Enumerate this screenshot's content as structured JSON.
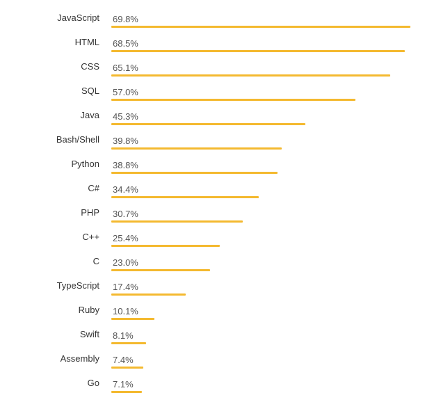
{
  "chart_data": {
    "type": "bar",
    "orientation": "horizontal",
    "categories": [
      "JavaScript",
      "HTML",
      "CSS",
      "SQL",
      "Java",
      "Bash/Shell",
      "Python",
      "C#",
      "PHP",
      "C++",
      "C",
      "TypeScript",
      "Ruby",
      "Swift",
      "Assembly",
      "Go"
    ],
    "values": [
      69.8,
      68.5,
      65.1,
      57.0,
      45.3,
      39.8,
      38.8,
      34.4,
      30.7,
      25.4,
      23.0,
      17.4,
      10.1,
      8.1,
      7.4,
      7.1
    ],
    "value_labels": [
      "69.8%",
      "68.5%",
      "65.1%",
      "57.0%",
      "45.3%",
      "39.8%",
      "38.8%",
      "34.4%",
      "30.7%",
      "25.4%",
      "23.0%",
      "17.4%",
      "10.1%",
      "8.1%",
      "7.4%",
      "7.1%"
    ],
    "unit": "%",
    "xlim": [
      0,
      69.8
    ],
    "grid": false,
    "bar_color": "#f4b92f"
  }
}
